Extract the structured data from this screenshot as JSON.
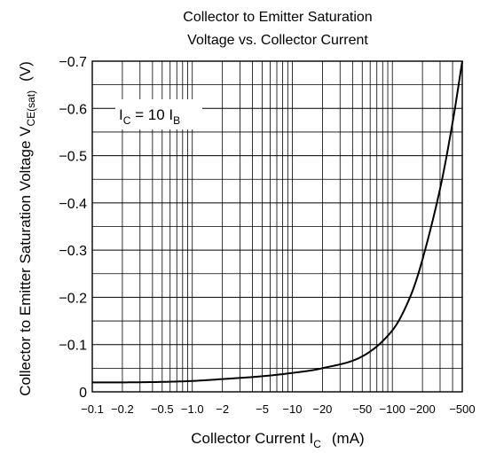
{
  "chart_data": {
    "type": "line",
    "title_line1": "Collector to Emitter Saturation",
    "title_line2": "Voltage vs. Collector Current",
    "ylabel_main": "Collector to Emitter Saturation Voltage  V",
    "ylabel_sub": "CE(sat)",
    "ylabel_unit": "(V)",
    "xlabel_main": "Collector Current  I",
    "xlabel_sub": "C",
    "xlabel_unit": "(mA)",
    "annotation": {
      "i1": "I",
      "s1": "C",
      "eq": " = 10 I",
      "s2": "B"
    },
    "x_scale": "log",
    "xlim": [
      -0.1,
      -500
    ],
    "ylim": [
      0,
      -0.7
    ],
    "x_ticks": [
      -0.1,
      -0.2,
      -0.5,
      -1.0,
      -2,
      -5,
      -10,
      -20,
      -50,
      -100,
      -200,
      -500
    ],
    "x_tick_labels": [
      "−0.1",
      "−0.2",
      "−0.5",
      "−1.0",
      "−2",
      "−5",
      "−10",
      "−20",
      "−50",
      "−100",
      "−200",
      "−500"
    ],
    "y_ticks": [
      0,
      -0.1,
      -0.2,
      -0.3,
      -0.4,
      -0.5,
      -0.6,
      -0.7
    ],
    "y_tick_labels": [
      "0",
      "−0.1",
      "−0.2",
      "−0.3",
      "−0.4",
      "−0.5",
      "−0.6",
      "−0.7"
    ],
    "grid": true,
    "series": [
      {
        "x": [
          -0.1,
          -0.2,
          -0.5,
          -1,
          -2,
          -5,
          -10,
          -20,
          -50,
          -100,
          -150,
          -200,
          -300,
          -400,
          -500
        ],
        "y": [
          -0.02,
          -0.02,
          -0.021,
          -0.023,
          -0.027,
          -0.033,
          -0.04,
          -0.05,
          -0.075,
          -0.13,
          -0.2,
          -0.28,
          -0.43,
          -0.57,
          -0.7
        ]
      }
    ]
  }
}
